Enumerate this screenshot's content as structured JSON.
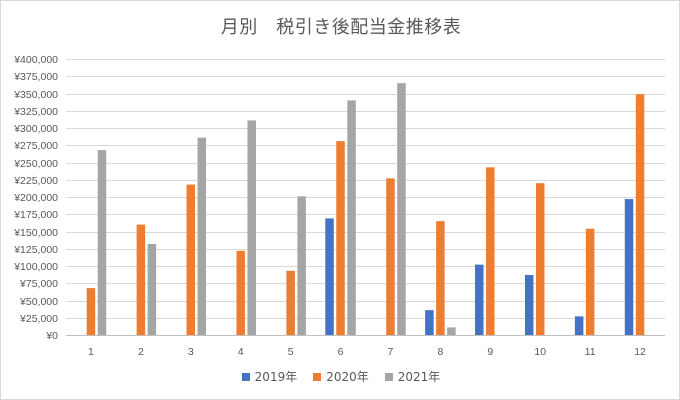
{
  "chart_data": {
    "type": "bar",
    "title": "月別　税引き後配当金推移表",
    "categories": [
      "1",
      "2",
      "3",
      "4",
      "5",
      "6",
      "7",
      "8",
      "9",
      "10",
      "11",
      "12"
    ],
    "series": [
      {
        "name": "2019年",
        "color": "#4472c4",
        "values": [
          0,
          0,
          0,
          0,
          0,
          169000,
          0,
          36000,
          102000,
          87000,
          27000,
          197000
        ]
      },
      {
        "name": "2020年",
        "color": "#ed7d31",
        "values": [
          68000,
          160000,
          218000,
          122000,
          93000,
          281000,
          227000,
          165000,
          243000,
          220000,
          154000,
          349000
        ]
      },
      {
        "name": "2021年",
        "color": "#a5a5a5",
        "values": [
          268000,
          132000,
          286000,
          311000,
          201000,
          340000,
          365000,
          11000,
          0,
          0,
          0,
          0
        ]
      }
    ],
    "ylim": [
      0,
      400000
    ],
    "y_ticks": [
      "¥0",
      "¥25,000",
      "¥50,000",
      "¥75,000",
      "¥100,000",
      "¥125,000",
      "¥150,000",
      "¥175,000",
      "¥200,000",
      "¥225,000",
      "¥250,000",
      "¥275,000",
      "¥300,000",
      "¥325,000",
      "¥350,000",
      "¥375,000",
      "¥400,000"
    ],
    "grid": true,
    "legend_position": "bottom"
  }
}
